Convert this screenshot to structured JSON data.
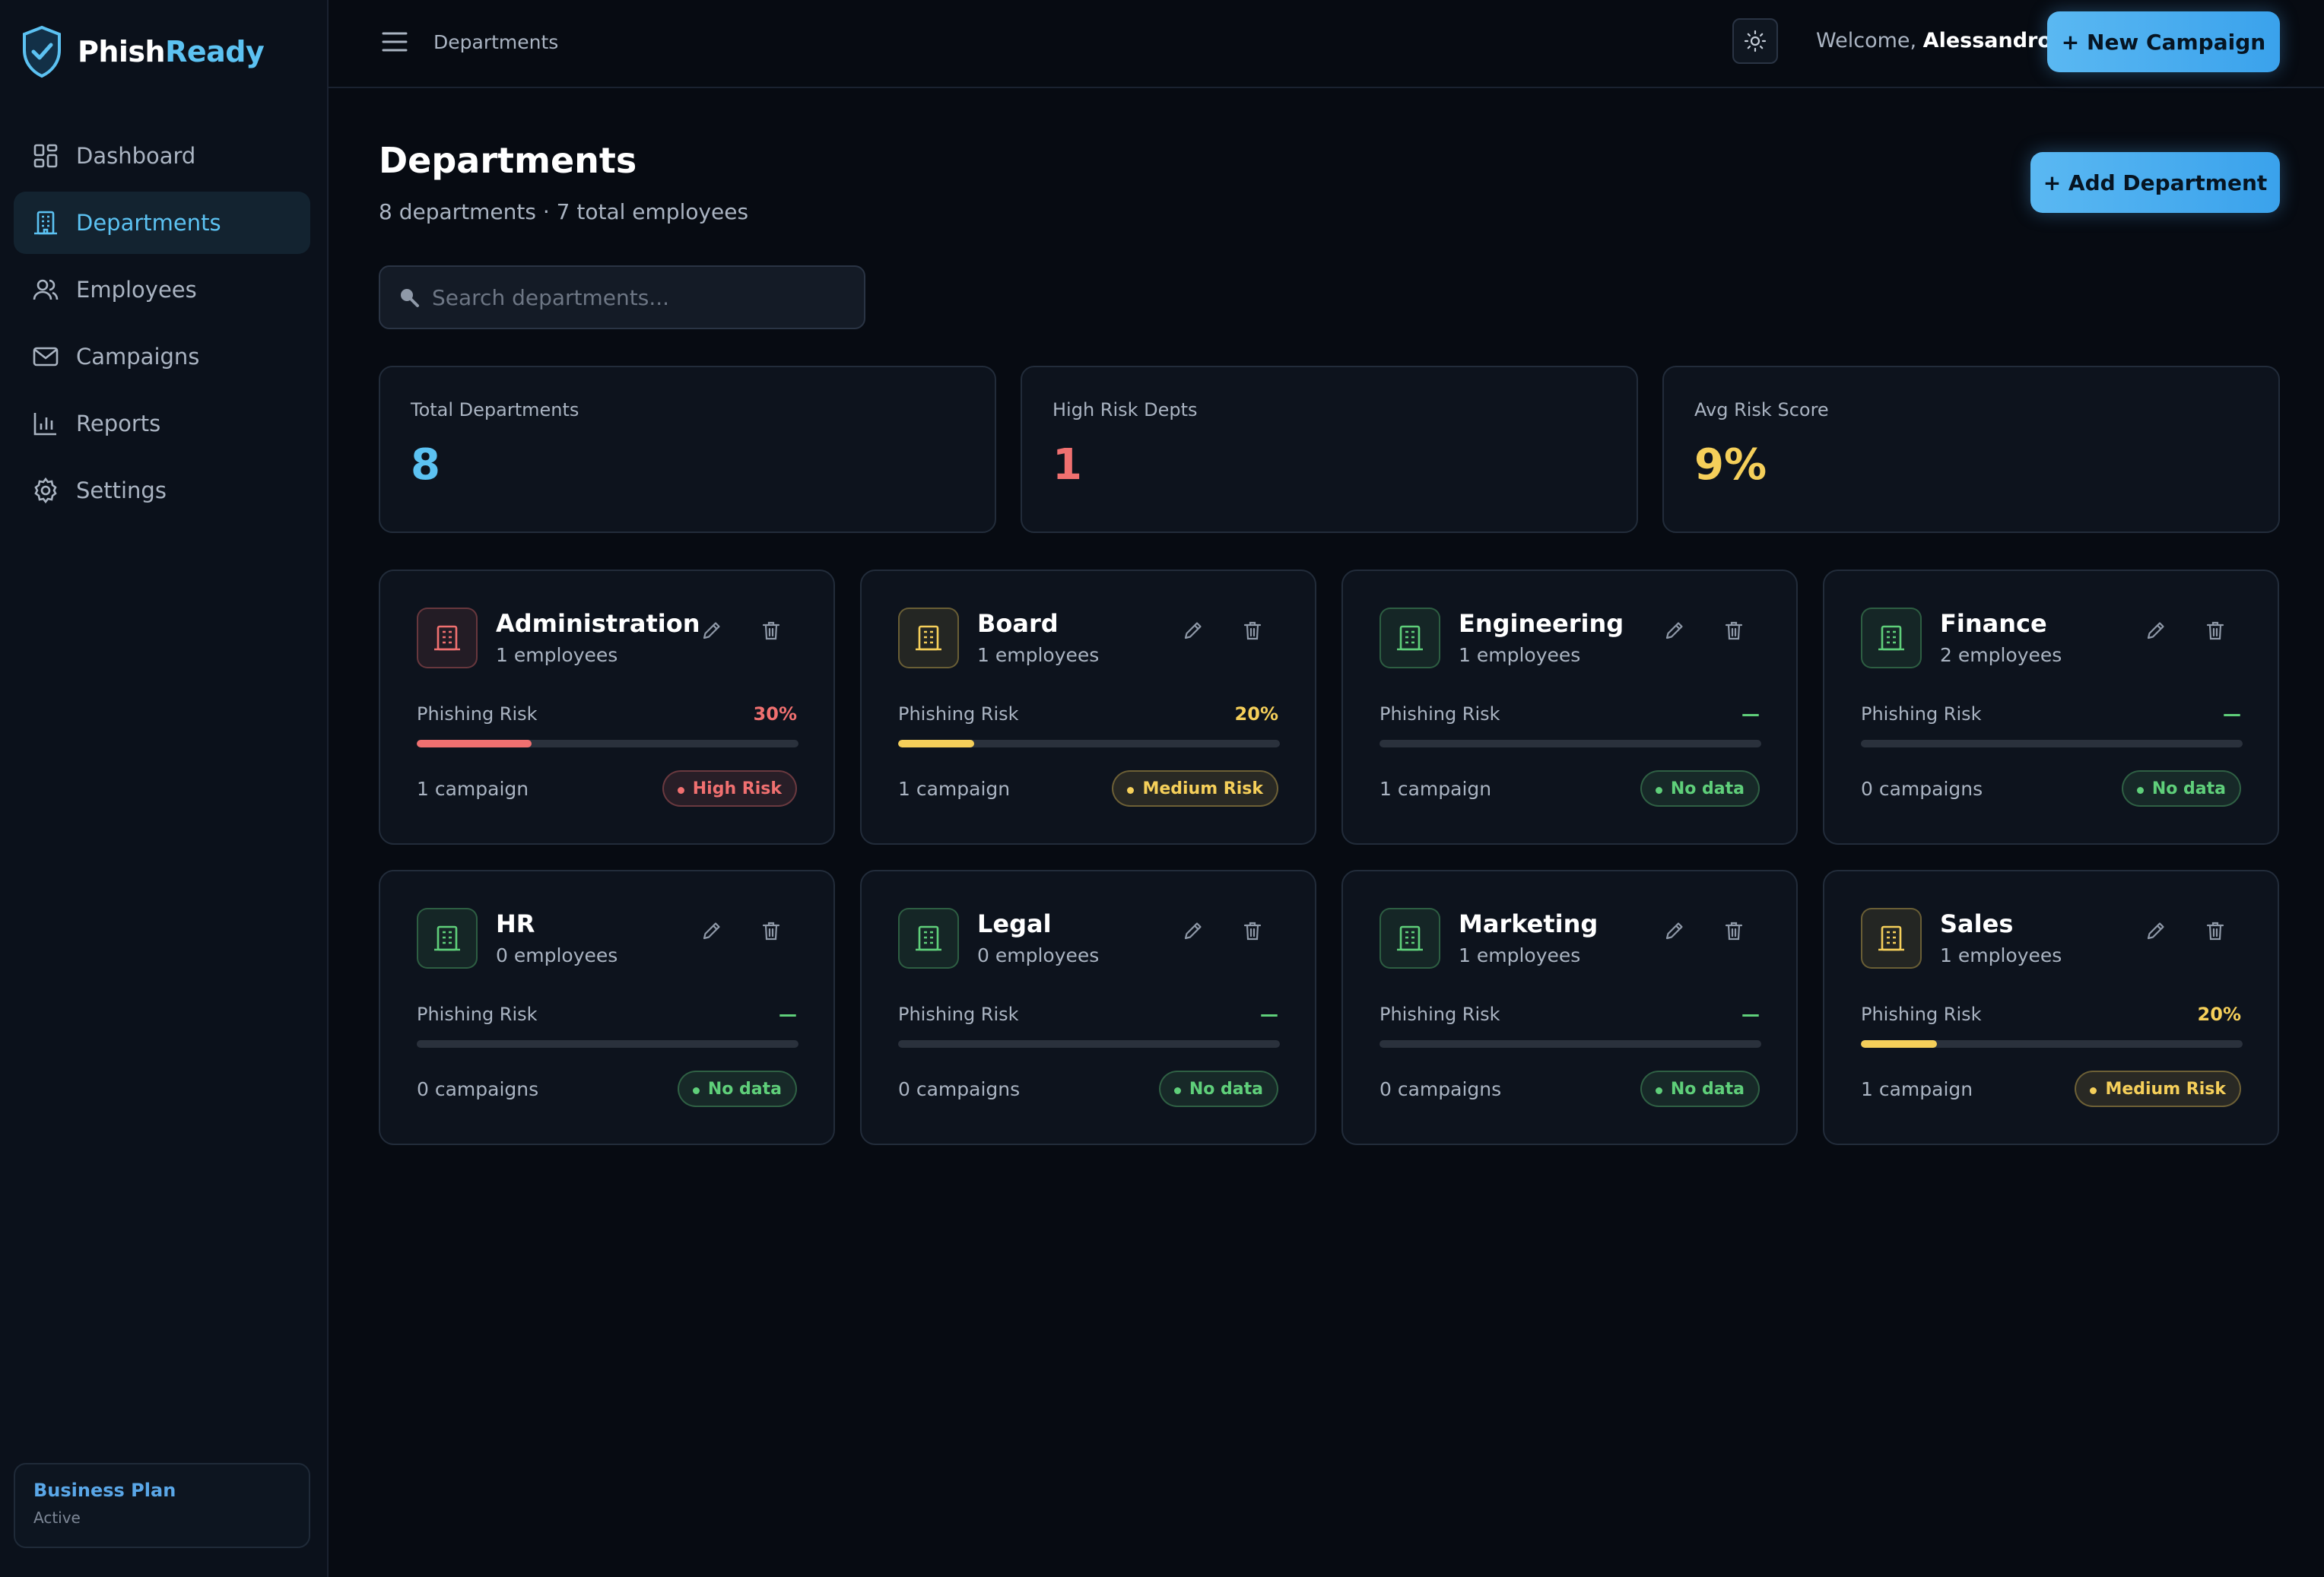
{
  "brand": {
    "part1": "Phish",
    "part2": "Ready"
  },
  "sidebar": {
    "items": [
      {
        "label": "Dashboard",
        "icon": "dashboard-icon"
      },
      {
        "label": "Departments",
        "icon": "building-icon"
      },
      {
        "label": "Employees",
        "icon": "users-icon"
      },
      {
        "label": "Campaigns",
        "icon": "mail-icon"
      },
      {
        "label": "Reports",
        "icon": "bar-chart-icon"
      },
      {
        "label": "Settings",
        "icon": "gear-icon"
      }
    ],
    "active": "Departments",
    "plan": {
      "name": "Business Plan",
      "status": "Active"
    }
  },
  "topbar": {
    "breadcrumb": "Departments",
    "welcome_prefix": "Welcome, ",
    "user": "Alessandro",
    "new_campaign": "+ New Campaign"
  },
  "page": {
    "title": "Departments",
    "subtitle": "8 departments · 7 total employees",
    "add_button": "+ Add Department",
    "search_placeholder": "Search departments..."
  },
  "stats": [
    {
      "label": "Total Departments",
      "value": "8",
      "color": "#5cc2f2"
    },
    {
      "label": "High Risk Depts",
      "value": "1",
      "color": "#f07070"
    },
    {
      "label": "Avg Risk Score",
      "value": "9%",
      "color": "#f5cf5a"
    }
  ],
  "colors": {
    "accent": "#5cc2f2",
    "high": "#f07070",
    "medium": "#f5cf5a",
    "none": "#5fcf7a"
  },
  "risk_label": "Phishing Risk",
  "departments": [
    {
      "name": "Administration",
      "employees": "1 employees",
      "risk_text": "30%",
      "risk_fraction": 0.3,
      "level": "high",
      "campaigns": "1 campaign",
      "badge": "High Risk"
    },
    {
      "name": "Board",
      "employees": "1 employees",
      "risk_text": "20%",
      "risk_fraction": 0.2,
      "level": "medium",
      "campaigns": "1 campaign",
      "badge": "Medium Risk"
    },
    {
      "name": "Engineering",
      "employees": "1 employees",
      "risk_text": "—",
      "risk_fraction": 0,
      "level": "none",
      "campaigns": "1 campaign",
      "badge": "No data"
    },
    {
      "name": "Finance",
      "employees": "2 employees",
      "risk_text": "—",
      "risk_fraction": 0,
      "level": "none",
      "campaigns": "0 campaigns",
      "badge": "No data"
    },
    {
      "name": "HR",
      "employees": "0 employees",
      "risk_text": "—",
      "risk_fraction": 0,
      "level": "none",
      "campaigns": "0 campaigns",
      "badge": "No data"
    },
    {
      "name": "Legal",
      "employees": "0 employees",
      "risk_text": "—",
      "risk_fraction": 0,
      "level": "none",
      "campaigns": "0 campaigns",
      "badge": "No data"
    },
    {
      "name": "Marketing",
      "employees": "1 employees",
      "risk_text": "—",
      "risk_fraction": 0,
      "level": "none",
      "campaigns": "0 campaigns",
      "badge": "No data"
    },
    {
      "name": "Sales",
      "employees": "1 employees",
      "risk_text": "20%",
      "risk_fraction": 0.2,
      "level": "medium",
      "campaigns": "1 campaign",
      "badge": "Medium Risk"
    }
  ]
}
